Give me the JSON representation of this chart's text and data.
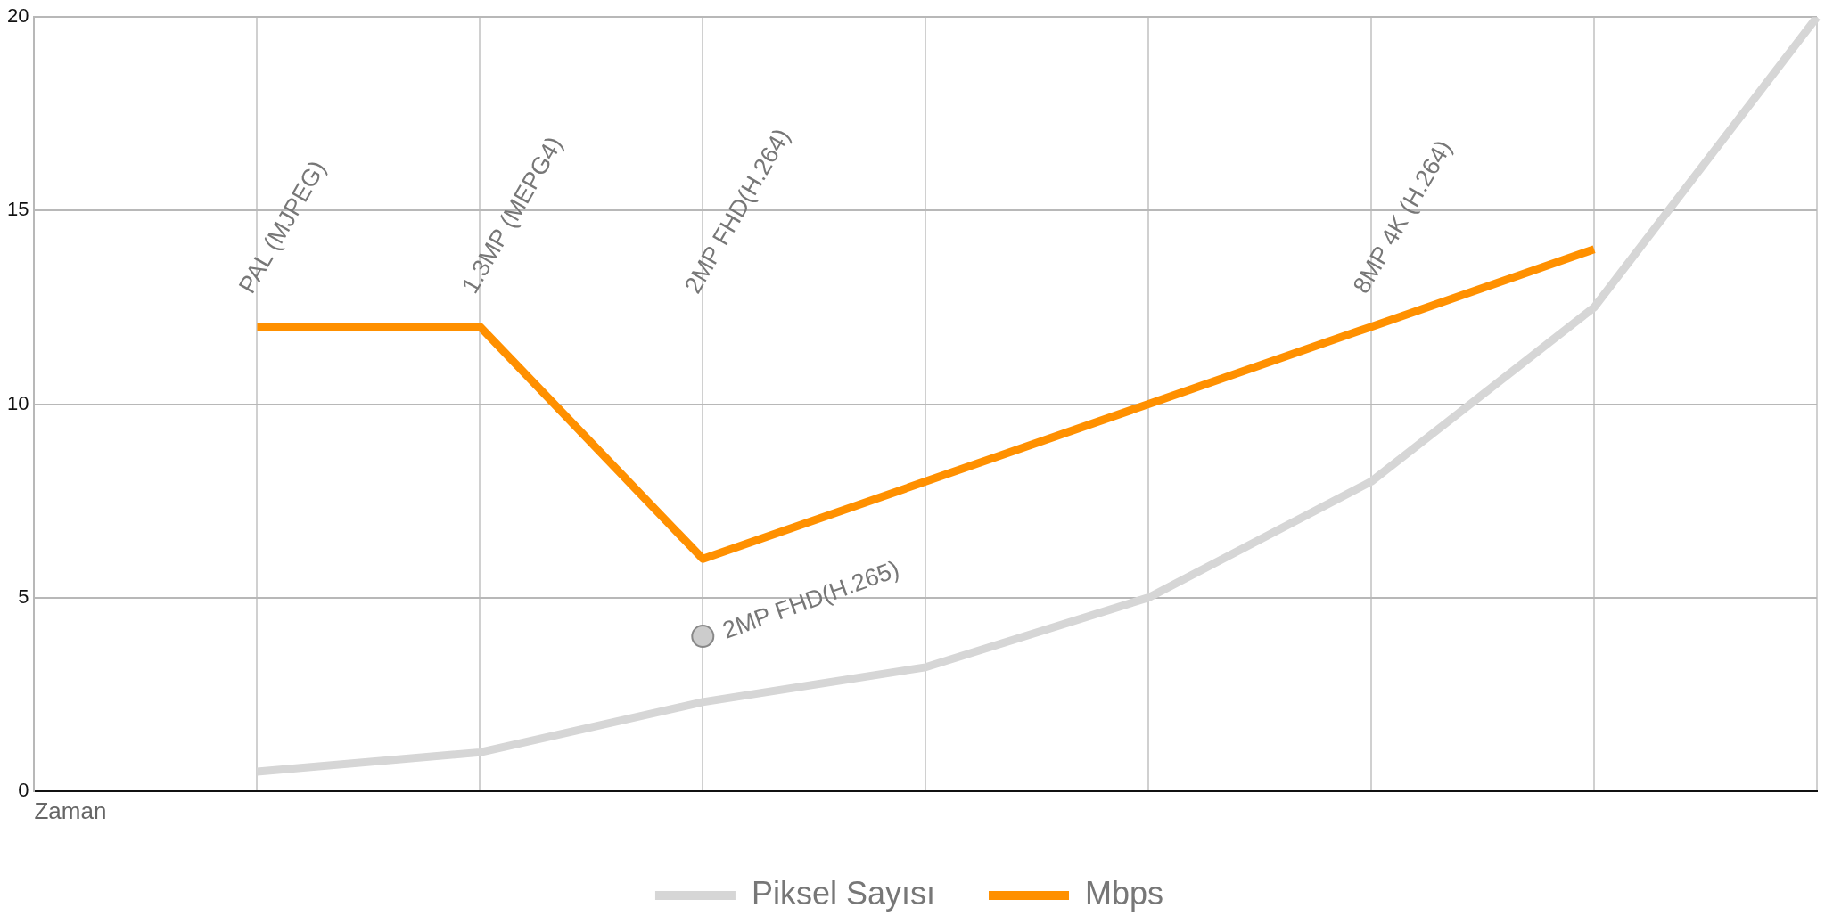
{
  "chart_data": {
    "type": "line",
    "xlabel": "Zaman",
    "categories": [
      null,
      null,
      null,
      null,
      null,
      null,
      null,
      null,
      null
    ],
    "ylim": [
      0,
      20
    ],
    "yticks": [
      0,
      5,
      10,
      15,
      20
    ],
    "tick_labels": "y",
    "grid": true,
    "legend": "bottom",
    "marker": "none",
    "line_style": "solid",
    "series": [
      {
        "name": "Piksel Sayısı",
        "color": "#d6d6d6",
        "values": [
          null,
          0.5,
          1.0,
          2.3,
          3.2,
          5.0,
          8.0,
          12.5,
          20
        ]
      },
      {
        "name": "Mbps",
        "color": "#ff9000",
        "values": [
          null,
          12,
          12,
          6,
          8,
          10,
          12,
          14,
          null
        ]
      },
      {
        "type": "scatter",
        "color": "#cccccc",
        "marker": "circle",
        "values": [
          null,
          null,
          null,
          4,
          null,
          null,
          null,
          null,
          null
        ]
      }
    ],
    "annotations": [
      "PAL (MJPEG)",
      "1.3MP (MEPG4)",
      "2MP FHD(H.264)",
      "8MP 4K (H.264)",
      "2MP FHD(H.265)"
    ]
  }
}
